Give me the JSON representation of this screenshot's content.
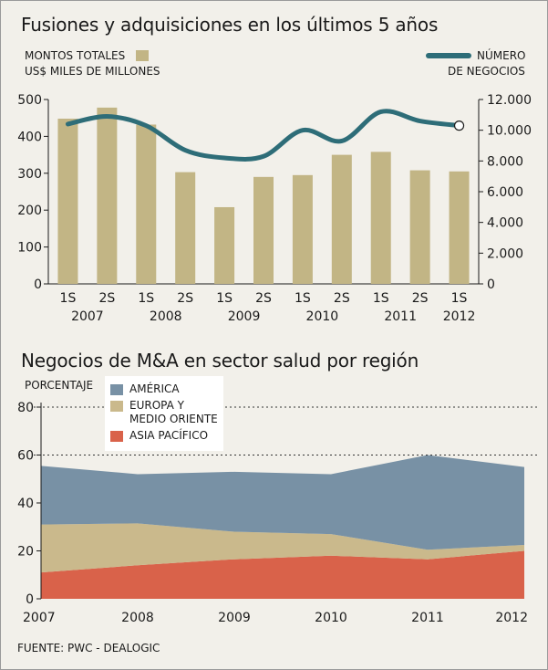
{
  "chart_data": [
    {
      "type": "bar",
      "title": "Fusiones y adquisiciones en los últimos 5 años",
      "bar_legend": [
        "MONTOS TOTALES",
        "US$ MILES DE MILLONES"
      ],
      "line_legend": [
        "NÚMERO",
        "DE NEGOCIOS"
      ],
      "categories": [
        "1S",
        "2S",
        "1S",
        "2S",
        "1S",
        "2S",
        "1S",
        "2S",
        "1S",
        "2S",
        "1S"
      ],
      "years": [
        {
          "label": "2007",
          "from": 0,
          "to": 1
        },
        {
          "label": "2008",
          "from": 2,
          "to": 3
        },
        {
          "label": "2009",
          "from": 4,
          "to": 5
        },
        {
          "label": "2010",
          "from": 6,
          "to": 7
        },
        {
          "label": "2011",
          "from": 8,
          "to": 9
        },
        {
          "label": "2012",
          "from": 10,
          "to": 10
        }
      ],
      "series": [
        {
          "name": "Montos totales (US$ miles de millones)",
          "axis": "left",
          "kind": "bar",
          "values": [
            448,
            478,
            432,
            303,
            208,
            290,
            295,
            350,
            358,
            308,
            305
          ]
        },
        {
          "name": "Número de negocios",
          "axis": "right",
          "kind": "line",
          "values": [
            10400,
            10900,
            10300,
            8700,
            8200,
            8300,
            10000,
            9300,
            11200,
            10600,
            10300
          ]
        }
      ],
      "ylim": [
        0,
        500
      ],
      "yticks": [
        "0",
        "100",
        "200",
        "300",
        "400",
        "500"
      ],
      "y2lim": [
        0,
        12000
      ],
      "y2ticks": [
        "0",
        "2.000",
        "4.000",
        "6.000",
        "8.000",
        "10.000",
        "12.000"
      ],
      "colors": {
        "bar": "#c2b585",
        "line": "#2e6d78"
      }
    },
    {
      "type": "area",
      "title": "Negocios de M&A en sector salud por región",
      "ylabel": "PORCENTAJE",
      "x": [
        "2007",
        "2008",
        "2009",
        "2010",
        "2011",
        "2012"
      ],
      "stacked": true,
      "series": [
        {
          "name": "ASIA PACÍFICO",
          "values": [
            11,
            14,
            16.5,
            18,
            16.5,
            20
          ],
          "color": "#d9624a"
        },
        {
          "name": "EUROPA Y MEDIO ORIENTE",
          "values": [
            20,
            17.5,
            11.5,
            9,
            4,
            2.5
          ],
          "color": "#cab98c"
        },
        {
          "name": "AMÉRICA",
          "values": [
            24.5,
            20.5,
            25,
            25,
            39.5,
            32.5
          ],
          "color": "#7891a5"
        }
      ],
      "legend": [
        {
          "label": [
            "AMÉRICA"
          ],
          "color": "#7891a5"
        },
        {
          "label": [
            "EUROPA Y",
            "MEDIO ORIENTE"
          ],
          "color": "#cab98c"
        },
        {
          "label": [
            "ASIA PACÍFICO"
          ],
          "color": "#d9624a"
        }
      ],
      "ylim": [
        0,
        80
      ],
      "yticks": [
        "0",
        "20",
        "40",
        "60",
        "80"
      ],
      "dashed_gridlines": [
        60,
        80
      ]
    }
  ],
  "source": "FUENTE: PWC - DEALOGIC"
}
